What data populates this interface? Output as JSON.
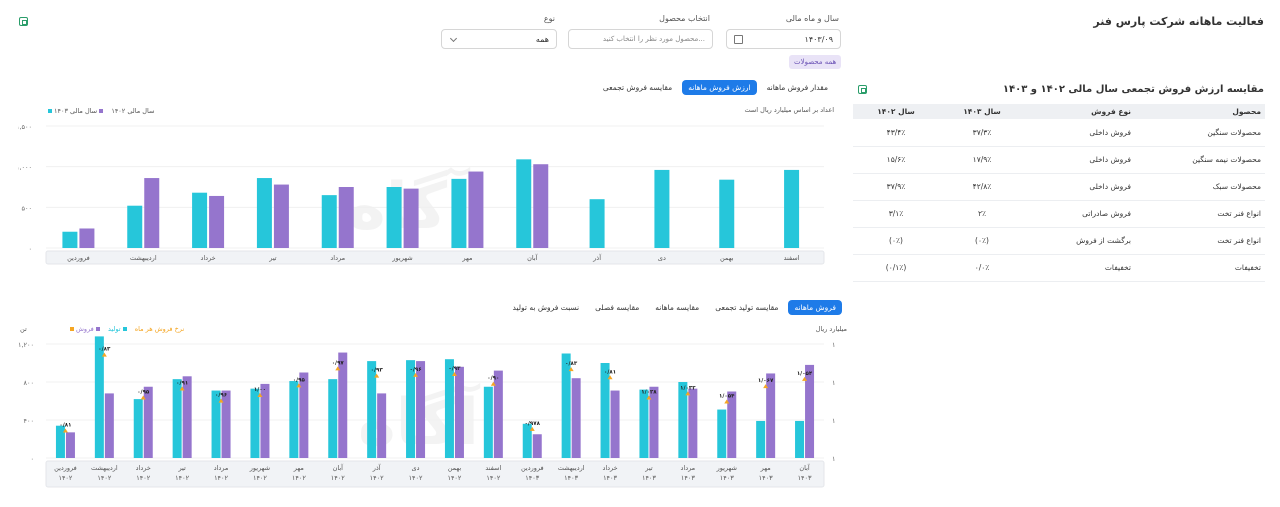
{
  "page": {
    "title": "فعالیت ماهانه شرکت پارس فنر"
  },
  "filters": {
    "year_month_label": "سال و ماه مالی",
    "year_month_value": "۱۴۰۳/۰۹",
    "product_label": "انتخاب محصول",
    "product_placeholder": "محصول مورد نظر را انتخاب کنید...",
    "type_label": "نوع",
    "type_value": "همه",
    "all_products_chip": "همه محصولات"
  },
  "comparison": {
    "title": "مقایسه ارزش فروش تجمعی سال مالی ۱۴۰۲ و ۱۴۰۳",
    "headers": [
      "محصول",
      "نوع فروش",
      "سال ۱۴۰۳",
      "سال ۱۴۰۲"
    ],
    "rows": [
      {
        "product": "محصولات سنگین",
        "type": "فروش داخلی",
        "y1403": "۳۷/۳٪",
        "y1402": "۴۳/۴٪"
      },
      {
        "product": "محصولات نیمه سنگین",
        "type": "فروش داخلی",
        "y1403": "۱۷/۹٪",
        "y1402": "۱۵/۶٪"
      },
      {
        "product": "محصولات سبک",
        "type": "فروش داخلی",
        "y1403": "۴۲/۸٪",
        "y1402": "۳۷/۹٪"
      },
      {
        "product": "انواع فنر تخت",
        "type": "فروش صادراتی",
        "y1403": "۲٪",
        "y1402": "۳/۱٪"
      },
      {
        "product": "انواع فنر تخت",
        "type": "برگشت از فروش",
        "y1403": "(۰٪)",
        "y1402": "(۰٪)"
      },
      {
        "product": "تخفیفات",
        "type": "تخفیفات",
        "y1403": "۰/۰٪",
        "y1402": "(۰/۱٪)"
      }
    ]
  },
  "chart1": {
    "tabs": [
      "مقدار فروش ماهانه",
      "ارزش فروش ماهانه",
      "مقایسه فروش تجمعی"
    ],
    "active_tab": 1,
    "subtitle": "اعداد بر اساس میلیارد ریال است",
    "legend": [
      "سال مالی ۱۴۰۳",
      "سال مالی ۱۴۰۲"
    ]
  },
  "chart2": {
    "tabs": [
      "فروش ماهانه",
      "مقایسه تولید تجمعی",
      "مقایسه ماهانه",
      "مقایسه فصلی",
      "نسبت فروش به تولید"
    ],
    "active_tab": 0,
    "unit_right": "میلیارد ریال",
    "unit_left": "تن",
    "legend": [
      "فروش",
      "تولید",
      "نرخ فروش هر ماه"
    ]
  },
  "colors": {
    "teal": "#26c6da",
    "purple": "#9575cd",
    "orange": "#f5a623",
    "accent": "#1e7be8"
  },
  "chart_data": [
    {
      "type": "bar",
      "categories": [
        "اسفند",
        "بهمن",
        "دی",
        "آذر",
        "آبان",
        "مهر",
        "شهریور",
        "مرداد",
        "تیر",
        "خرداد",
        "اردیبهشت",
        "فروردین"
      ],
      "yticks": [
        "۱,۵۰۰",
        "۱,۰۰۰",
        "۵۰۰",
        "۰"
      ],
      "ylim": [
        0,
        1500
      ],
      "series": [
        {
          "name": "سال مالی ۱۴۰۲",
          "color": "#26c6da",
          "values": [
            960,
            840,
            960,
            600,
            1090,
            850,
            750,
            650,
            860,
            680,
            520,
            200
          ]
        },
        {
          "name": "سال مالی ۱۴۰۳",
          "color": "#9575cd",
          "values": [
            null,
            null,
            null,
            null,
            1030,
            940,
            730,
            750,
            780,
            640,
            860,
            240
          ]
        }
      ]
    },
    {
      "type": "bar",
      "categories": [
        "آبان ۱۴۰۳",
        "مهر ۱۴۰۳",
        "شهریور ۱۴۰۳",
        "مرداد ۱۴۰۳",
        "تیر ۱۴۰۳",
        "خرداد ۱۴۰۳",
        "اردیبهشت ۱۴۰۳",
        "فروردین ۱۴۰۳",
        "اسفند ۱۴۰۲",
        "بهمن ۱۴۰۲",
        "دی ۱۴۰۲",
        "آذر ۱۴۰۲",
        "آبان ۱۴۰۲",
        "مهر ۱۴۰۲",
        "شهریور ۱۴۰۲",
        "مرداد ۱۴۰۲",
        "تیر ۱۴۰۲",
        "خرداد ۱۴۰۲",
        "اردیبهشت ۱۴۰۲",
        "فروردین ۱۴۰۲"
      ],
      "yticks_left": [
        "۱,۲۰۰",
        "۸۰۰",
        "۴۰۰",
        "۰"
      ],
      "ylim": [
        0,
        1200
      ],
      "series": [
        {
          "name": "تولید",
          "color": "#26c6da",
          "values": [
            390,
            390,
            510,
            800,
            720,
            1000,
            1100,
            360,
            750,
            1040,
            1030,
            1020,
            830,
            810,
            730,
            710,
            830,
            620,
            1280,
            340
          ]
        },
        {
          "name": "فروش",
          "color": "#9575cd",
          "values": [
            980,
            890,
            700,
            730,
            750,
            710,
            840,
            250,
            920,
            960,
            1020,
            680,
            1110,
            900,
            780,
            710,
            860,
            750,
            680,
            270
          ]
        }
      ],
      "rate_labels": [
        "۱/۰۵۴",
        "۱/۰۶۷",
        "۱/۰۵۴",
        "۱/۰۳۲",
        "۱/۰۲۸",
        "۰/۸۱",
        "۰/۸۳",
        "۰/۹۷۸",
        "۰/۹۰",
        "۰/۹۳",
        "۰/۹۶",
        "۰/۹۳",
        "۰/۹۷",
        "۰/۹۵",
        "۱/۰۰",
        "۰/۹۶",
        "۰/۹۱",
        "۰/۹۵",
        "۰/۸۳",
        "۰/۸۱"
      ]
    }
  ]
}
